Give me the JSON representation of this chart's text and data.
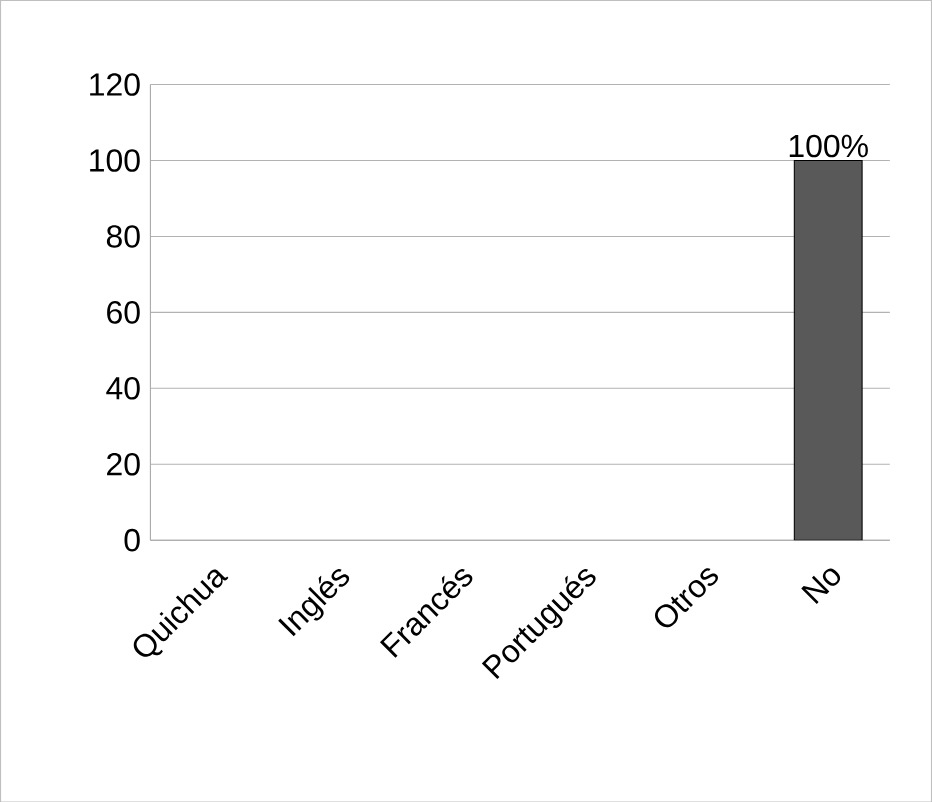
{
  "chart_data": {
    "type": "bar",
    "categories": [
      "Quichua",
      "Inglés",
      "Francés",
      "Portugués",
      "Otros",
      "No"
    ],
    "values": [
      0,
      0,
      0,
      0,
      0,
      100
    ],
    "color": "#595959",
    "value_labels": [
      null,
      null,
      null,
      null,
      null,
      "100%"
    ],
    "ylim": [
      0,
      120
    ],
    "yticks": [
      0,
      20,
      40,
      60,
      80,
      100,
      120
    ],
    "grid": "y"
  }
}
